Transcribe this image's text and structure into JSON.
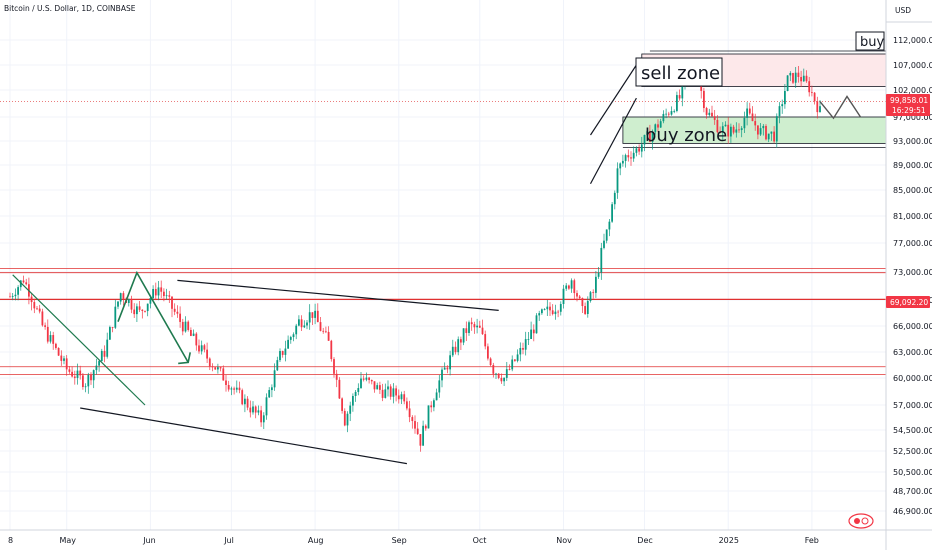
{
  "header": {
    "symbol": "Bitcoin / U.S. Dollar, 1D, COINBASE"
  },
  "currency": "USD",
  "price_badge": {
    "price": "99,858.01",
    "countdown": "16:29:51",
    "color": "#f23645"
  },
  "level_badge": {
    "price": "69,092.20",
    "color": "#f23645"
  },
  "annotations": {
    "buy": "buy",
    "sell_zone": "sell zone",
    "buy_zone": "buy zone"
  },
  "colors": {
    "up": "#089981",
    "down": "#f23645",
    "sell_fill": "#fde8ea",
    "buy_fill": "#cfeecf",
    "line": "#131722",
    "red_line": "#e03030",
    "trend_green": "#1f7a4f"
  },
  "chart_data": {
    "type": "candlestick",
    "title": "Bitcoin / U.S. Dollar, 1D, COINBASE",
    "y_axis_side": "right",
    "y_ticks": [
      112000,
      107000,
      102000,
      97000,
      93000,
      89000,
      85000,
      81000,
      77000,
      73000,
      69000,
      66000,
      63000,
      60000,
      57000,
      54500,
      52500,
      50500,
      48700,
      46900
    ],
    "y_tick_labels": [
      "112,000.00",
      "107,000.00",
      "102,000.00",
      "97,000.00",
      "93,000.00",
      "89,000.00",
      "85,000.00",
      "81,000.00",
      "77,000.00",
      "73,000.00",
      "69,000.00",
      "66,000.00",
      "63,000.00",
      "60,000.00",
      "57,000.00",
      "54,500.00",
      "52,500.00",
      "50,500.00",
      "48,700.00",
      "46,900.00"
    ],
    "x_labels": [
      "8",
      "May",
      "Jun",
      "Jul",
      "Aug",
      "Sep",
      "Oct",
      "Nov",
      "Dec",
      "2025",
      "Feb"
    ],
    "x_label_positions": [
      0,
      21,
      52,
      82,
      113,
      144,
      174,
      205,
      235,
      266,
      297
    ],
    "days_total": 310,
    "close_keypoints": [
      [
        0,
        69500
      ],
      [
        5,
        72000
      ],
      [
        12,
        66000
      ],
      [
        21,
        61000
      ],
      [
        28,
        59500
      ],
      [
        35,
        63000
      ],
      [
        41,
        70000
      ],
      [
        48,
        67500
      ],
      [
        55,
        70800
      ],
      [
        62,
        67000
      ],
      [
        70,
        63500
      ],
      [
        78,
        60500
      ],
      [
        85,
        58000
      ],
      [
        93,
        55500
      ],
      [
        100,
        62500
      ],
      [
        107,
        66500
      ],
      [
        112,
        67500
      ],
      [
        118,
        64000
      ],
      [
        124,
        55500
      ],
      [
        130,
        60000
      ],
      [
        138,
        58500
      ],
      [
        146,
        58000
      ],
      [
        152,
        53500
      ],
      [
        158,
        59000
      ],
      [
        165,
        63500
      ],
      [
        170,
        66000
      ],
      [
        174,
        65500
      ],
      [
        179,
        61000
      ],
      [
        183,
        60000
      ],
      [
        190,
        63500
      ],
      [
        196,
        67000
      ],
      [
        203,
        68500
      ],
      [
        208,
        72000
      ],
      [
        212,
        67500
      ],
      [
        216,
        70000
      ],
      [
        219,
        75500
      ],
      [
        222,
        80000
      ],
      [
        225,
        88000
      ],
      [
        228,
        90500
      ],
      [
        232,
        91500
      ],
      [
        237,
        94000
      ],
      [
        243,
        97500
      ],
      [
        248,
        100500
      ],
      [
        253,
        107500
      ],
      [
        258,
        98000
      ],
      [
        263,
        95000
      ],
      [
        268,
        94500
      ],
      [
        273,
        97500
      ],
      [
        278,
        94500
      ],
      [
        283,
        94000
      ],
      [
        288,
        104000
      ],
      [
        292,
        105000
      ],
      [
        296,
        102500
      ],
      [
        300,
        98000
      ]
    ],
    "current_price": 99858.01,
    "red_levels": [
      73500,
      72900,
      69092.2,
      61300,
      60400
    ],
    "sell_zone": {
      "low": 102700,
      "high": 109200,
      "day_start": 234,
      "day_end": 310
    },
    "buy_zone": {
      "low": 92600,
      "high": 97000,
      "day_start": 227,
      "day_end": 310
    },
    "trendlines": [
      {
        "color": "#1f7a4f",
        "points": [
          [
            1,
            72600
          ],
          [
            50,
            57000
          ]
        ]
      },
      {
        "color": "#131722",
        "points": [
          [
            26,
            56700
          ],
          [
            147,
            51300
          ]
        ]
      },
      {
        "color": "#131722",
        "points": [
          [
            62,
            71800
          ],
          [
            181,
            67800
          ]
        ]
      },
      {
        "color": "#131722",
        "points": [
          [
            215,
            86000
          ],
          [
            232,
            100500
          ]
        ]
      },
      {
        "color": "#131722",
        "points": [
          [
            215,
            94000
          ],
          [
            232,
            107000
          ]
        ]
      }
    ],
    "zigzag": {
      "color": "#1f7a4f",
      "points": [
        [
          40,
          66500
        ],
        [
          47,
          72900
        ],
        [
          66,
          61800
        ]
      ]
    },
    "projection": {
      "color": "#555555",
      "points": [
        [
          300,
          99858
        ],
        [
          305,
          96800
        ],
        [
          310,
          100800
        ],
        [
          315,
          97000
        ]
      ]
    }
  }
}
